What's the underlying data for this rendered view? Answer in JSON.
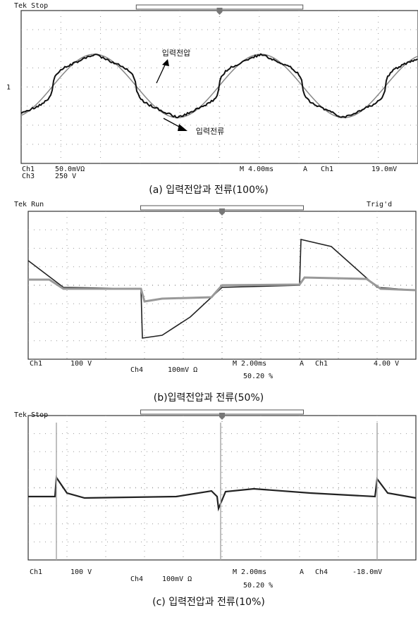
{
  "panels": [
    {
      "status": "Tek Stop",
      "marker": "1",
      "label_voltage": "입력전압",
      "label_current": "입력전류",
      "ch_a": "Ch1",
      "ch_a_scale": "50.0mVΩ",
      "ch_b": "Ch3",
      "ch_b_scale": "250 V",
      "timebase": "M 4.00ms",
      "trigger_mode": "A",
      "trigger_source": "Ch1",
      "trigger_level": "19.0mV",
      "caption": "(a) 입력전압과 전류(100%)"
    },
    {
      "status": "Tek Run",
      "trig_state": "Trig'd",
      "ch_a": "Ch1",
      "ch_a_scale": "100 V",
      "ch_b": "Ch4",
      "ch_b_scale": "100mV Ω",
      "timebase": "M 2.00ms",
      "trigger_mode": "A",
      "trigger_source": "Ch1",
      "trigger_level": "4.00 V",
      "position": "50.20 %",
      "caption": "(b)입력전압과 전류(50%)"
    },
    {
      "status": "Tek Stop",
      "ch_a": "Ch1",
      "ch_a_scale": "100 V",
      "ch_b": "Ch4",
      "ch_b_scale": "100mV Ω",
      "timebase": "M 2.00ms",
      "trigger_mode": "A",
      "trigger_source": "Ch4",
      "trigger_level": "-18.0mV",
      "position": "50.20 %",
      "caption": "(c) 입력전압과 전류(10%)"
    }
  ]
}
